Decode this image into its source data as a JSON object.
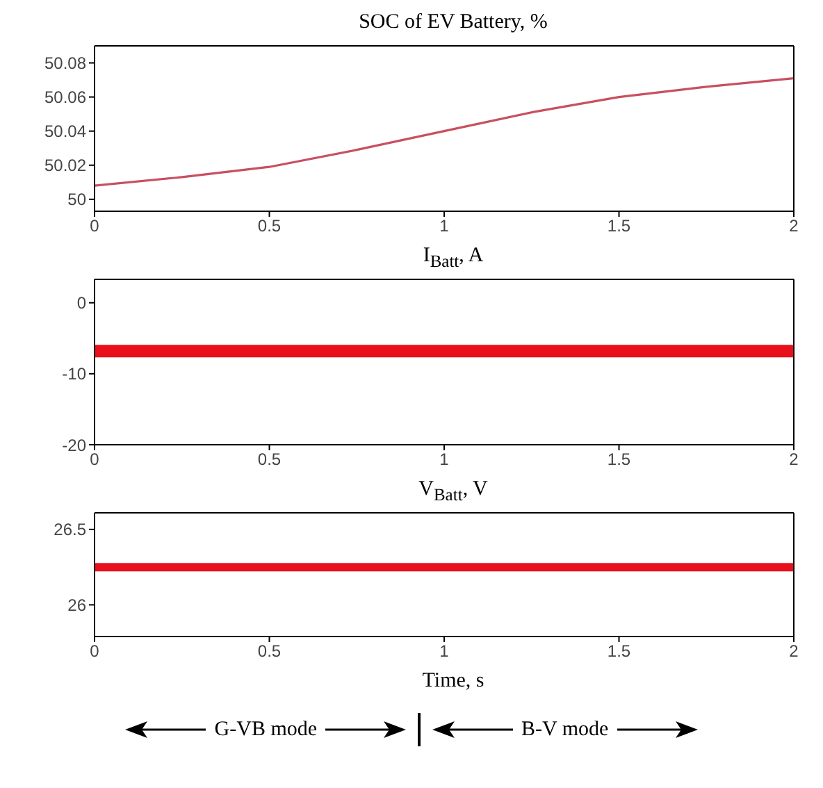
{
  "chart_data": [
    {
      "type": "line",
      "title": "SOC of EV Battery, %",
      "x": [
        0,
        0.25,
        0.5,
        0.75,
        1,
        1.25,
        1.5,
        1.75,
        2
      ],
      "series": [
        {
          "color": "#c8505f",
          "values": [
            50.008,
            50.013,
            50.019,
            50.029,
            50.04,
            50.051,
            50.06,
            50.066,
            50.071
          ]
        }
      ],
      "xlim": [
        0,
        2
      ],
      "xticks": [
        0,
        0.5,
        1,
        1.5,
        2
      ],
      "ylim": [
        49.993,
        50.09
      ],
      "yticks": [
        50,
        50.02,
        50.04,
        50.06,
        50.08
      ],
      "grid": false,
      "legend": false
    },
    {
      "type": "line",
      "title": "I$_{Batt}$, A",
      "x": [
        0,
        2
      ],
      "series": [
        {
          "color": "#e8101a",
          "values": [
            -6.8,
            -6.8
          ]
        }
      ],
      "xlim": [
        0,
        2
      ],
      "xticks": [
        0,
        0.5,
        1,
        1.5,
        2
      ],
      "ylim": [
        -20,
        3.3
      ],
      "yticks": [
        -20,
        -10,
        0
      ],
      "grid": false,
      "legend": false
    },
    {
      "type": "line",
      "title": "V$_{Batt}$, V",
      "xlabel": "Time, s",
      "x": [
        0,
        2
      ],
      "series": [
        {
          "color": "#e8101a",
          "values": [
            26.25,
            26.25
          ]
        }
      ],
      "xlim": [
        0,
        2
      ],
      "xticks": [
        0,
        0.5,
        1,
        1.5,
        2
      ],
      "ylim": [
        25.79,
        26.61
      ],
      "yticks": [
        26,
        26.5
      ],
      "grid": false,
      "legend": false,
      "annotations": [
        "G-VB mode",
        "B-V mode"
      ]
    }
  ]
}
